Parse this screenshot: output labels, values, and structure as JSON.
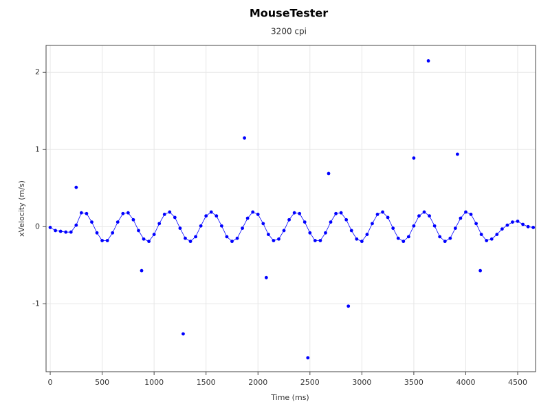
{
  "chart_data": {
    "type": "scatter",
    "title": "MouseTester",
    "subtitle": "3200 cpi",
    "x_label": "Time (ms)",
    "y_label": "xVelocity (m/s)",
    "xlim": [
      -40,
      4672
    ],
    "ylim": [
      -1.88,
      2.35
    ],
    "xticks": [
      0,
      500,
      1000,
      1500,
      2000,
      2500,
      3000,
      3500,
      4000,
      4500
    ],
    "yticks": [
      -1,
      0,
      1,
      2
    ],
    "grid": true,
    "series": [
      {
        "color": "#0000ff",
        "line": true,
        "markers": true,
        "x": [
          0,
          50,
          100,
          150,
          200,
          250,
          300,
          350,
          400,
          450,
          500,
          550,
          600,
          650,
          700,
          750,
          800,
          850,
          900,
          950,
          1000,
          1050,
          1100,
          1150,
          1200,
          1250,
          1300,
          1350,
          1400,
          1450,
          1500,
          1550,
          1600,
          1650,
          1700,
          1750,
          1800,
          1850,
          1900,
          1950,
          2000,
          2050,
          2100,
          2150,
          2200,
          2250,
          2300,
          2350,
          2400,
          2450,
          2500,
          2550,
          2600,
          2650,
          2700,
          2750,
          2800,
          2850,
          2900,
          2950,
          3000,
          3050,
          3100,
          3150,
          3200,
          3250,
          3300,
          3350,
          3400,
          3450,
          3500,
          3550,
          3600,
          3650,
          3700,
          3750,
          3800,
          3850,
          3900,
          3950,
          4000,
          4050,
          4100,
          4150,
          4200,
          4250,
          4300,
          4350,
          4400,
          4450,
          4500,
          4550,
          4600,
          4650
        ],
        "values": [
          -0.01,
          -0.05,
          -0.06,
          -0.07,
          -0.07,
          0.02,
          0.18,
          0.17,
          0.06,
          -0.08,
          -0.18,
          -0.18,
          -0.08,
          0.06,
          0.17,
          0.18,
          0.09,
          -0.05,
          -0.16,
          -0.19,
          -0.1,
          0.04,
          0.16,
          0.19,
          0.12,
          -0.02,
          -0.15,
          -0.19,
          -0.13,
          0.01,
          0.14,
          0.19,
          0.14,
          0.01,
          -0.13,
          -0.19,
          -0.15,
          -0.02,
          0.11,
          0.19,
          0.16,
          0.04,
          -0.1,
          -0.18,
          -0.16,
          -0.05,
          0.09,
          0.18,
          0.17,
          0.06,
          -0.08,
          -0.18,
          -0.18,
          -0.08,
          0.06,
          0.17,
          0.18,
          0.09,
          -0.05,
          -0.16,
          -0.19,
          -0.1,
          0.04,
          0.16,
          0.19,
          0.12,
          -0.02,
          -0.15,
          -0.19,
          -0.13,
          0.01,
          0.14,
          0.19,
          0.14,
          0.01,
          -0.13,
          -0.19,
          -0.15,
          -0.02,
          0.11,
          0.19,
          0.16,
          0.04,
          -0.1,
          -0.18,
          -0.16,
          -0.1,
          -0.03,
          0.02,
          0.06,
          0.07,
          0.03,
          0.0,
          -0.01
        ]
      },
      {
        "color": "#0000ff",
        "line": false,
        "markers": true,
        "x": [
          250,
          880,
          1280,
          1870,
          2080,
          2480,
          2680,
          2870,
          3500,
          3640,
          3920,
          4140
        ],
        "values": [
          0.51,
          -0.57,
          -1.39,
          1.15,
          -0.66,
          -1.7,
          0.69,
          -1.03,
          0.89,
          2.15,
          0.94,
          -0.57
        ]
      }
    ]
  }
}
